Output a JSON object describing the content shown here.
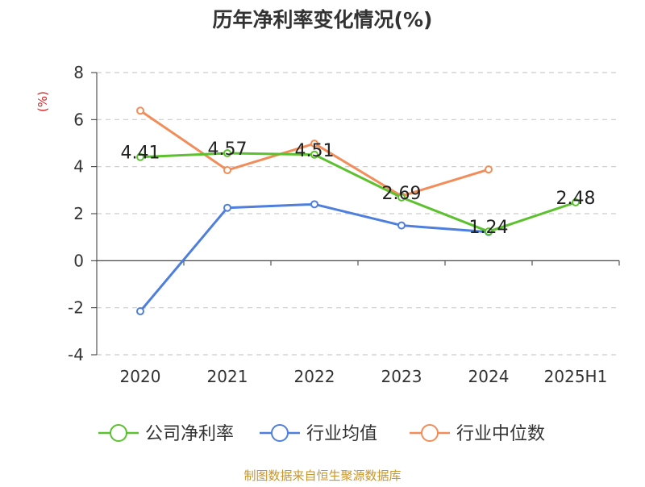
{
  "chart_data": {
    "type": "line",
    "title": "历年净利率变化情况(%)",
    "ylabel": "(%)",
    "xlabel": "",
    "categories": [
      "2020",
      "2021",
      "2022",
      "2023",
      "2024",
      "2025H1"
    ],
    "ylim": [
      -4,
      8
    ],
    "yticks": [
      -4,
      -2,
      0,
      2,
      4,
      6,
      8
    ],
    "grid": true,
    "legend_position": "bottom",
    "series": [
      {
        "name": "公司净利率",
        "color": "#5cc12e",
        "values": [
          4.41,
          4.57,
          4.51,
          2.69,
          1.24,
          2.48
        ],
        "show_labels": true
      },
      {
        "name": "行业均值",
        "color": "#4e7fde",
        "values": [
          -2.15,
          2.25,
          2.4,
          1.5,
          1.22,
          null
        ],
        "show_labels": false
      },
      {
        "name": "行业中位数",
        "color": "#f28d5a",
        "values": [
          6.38,
          3.85,
          4.98,
          2.75,
          3.88,
          null
        ],
        "show_labels": false
      }
    ],
    "source_note": "制图数据来自恒生聚源数据库"
  }
}
